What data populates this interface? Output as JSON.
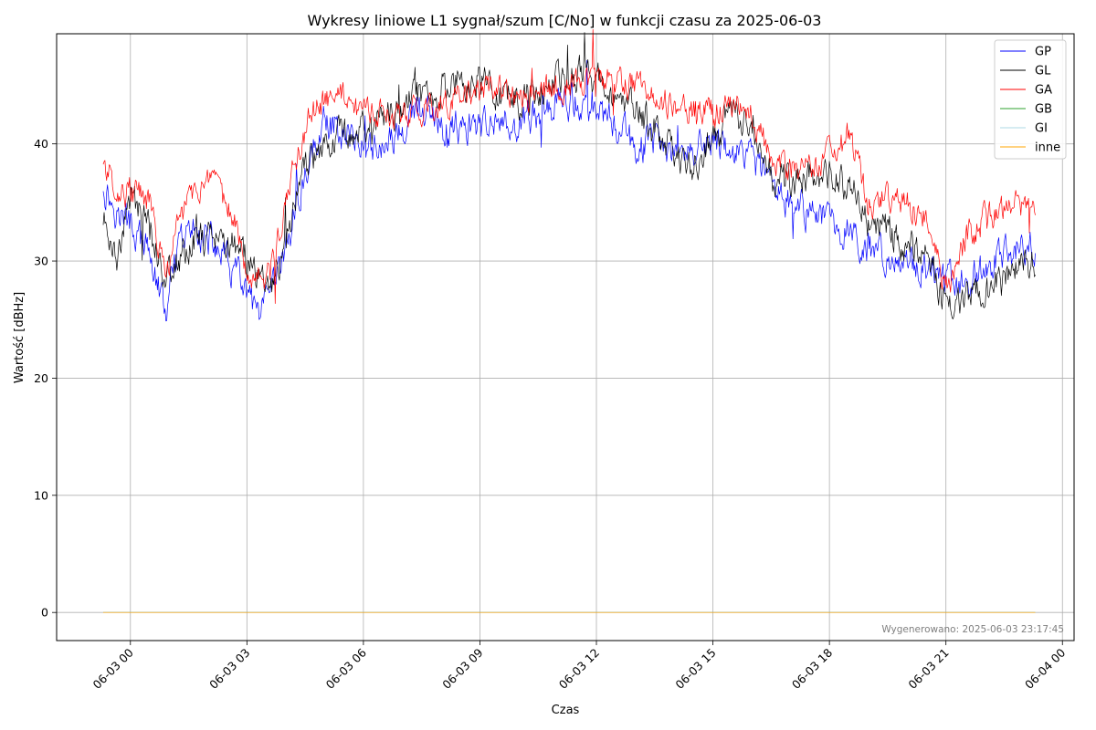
{
  "chart_data": {
    "type": "line",
    "title": "Wykresy liniowe L1 sygnał/szum [C/No] w funkcji czasu za 2025-06-03",
    "xlabel": "Czas",
    "ylabel": "Wartość [dBHz]",
    "x_unit": "hours since 2025-06-03 00:00",
    "xlim": [
      -1.9,
      24.3
    ],
    "ylim": [
      -2.4,
      49.4
    ],
    "yticks": [
      0,
      10,
      20,
      30,
      40
    ],
    "xticks": [
      {
        "x": 0,
        "label": "06-03 00"
      },
      {
        "x": 3,
        "label": "06-03 03"
      },
      {
        "x": 6,
        "label": "06-03 06"
      },
      {
        "x": 9,
        "label": "06-03 09"
      },
      {
        "x": 12,
        "label": "06-03 12"
      },
      {
        "x": 15,
        "label": "06-03 15"
      },
      {
        "x": 18,
        "label": "06-03 18"
      },
      {
        "x": 21,
        "label": "06-03 21"
      },
      {
        "x": 24,
        "label": "06-04 00"
      }
    ],
    "grid": true,
    "legend_position": "top-right",
    "x": [
      -0.7,
      -0.3,
      0.0,
      0.5,
      0.9,
      1.3,
      1.7,
      2.2,
      2.7,
      3.0,
      3.3,
      3.6,
      4.0,
      4.3,
      4.7,
      5.0,
      5.5,
      6.0,
      6.5,
      7.0,
      7.5,
      8.0,
      8.5,
      9.0,
      9.5,
      10.0,
      10.5,
      11.0,
      11.5,
      12.0,
      12.5,
      13.0,
      13.5,
      14.0,
      14.5,
      15.0,
      15.5,
      16.0,
      16.5,
      17.0,
      17.5,
      18.0,
      18.5,
      19.0,
      19.5,
      20.0,
      20.5,
      21.0,
      21.5,
      22.0,
      22.5,
      23.0,
      23.3
    ],
    "series": [
      {
        "name": "GP",
        "color": "#0000ff",
        "values": [
          36.5,
          34.0,
          33.0,
          30.5,
          25.5,
          31.5,
          33.0,
          31.0,
          29.0,
          27.0,
          25.0,
          26.5,
          31.0,
          35.0,
          39.5,
          42.0,
          41.0,
          40.5,
          39.5,
          41.0,
          43.0,
          41.0,
          41.5,
          41.0,
          41.5,
          42.0,
          42.5,
          43.5,
          43.5,
          42.5,
          41.5,
          40.0,
          40.0,
          39.0,
          39.5,
          40.0,
          39.5,
          38.5,
          36.5,
          35.0,
          34.0,
          33.5,
          32.5,
          31.0,
          30.5,
          29.5,
          29.5,
          28.5,
          28.0,
          29.0,
          30.5,
          31.5,
          30.5
        ]
      },
      {
        "name": "GL",
        "color": "#000000",
        "values": [
          33.5,
          30.5,
          35.5,
          33.0,
          28.5,
          30.5,
          32.0,
          32.0,
          31.5,
          30.0,
          28.5,
          28.0,
          31.5,
          36.0,
          39.0,
          40.5,
          41.0,
          41.5,
          42.0,
          43.5,
          44.5,
          45.0,
          45.5,
          45.5,
          44.0,
          43.5,
          44.5,
          45.0,
          46.0,
          45.5,
          44.5,
          43.0,
          41.0,
          39.0,
          38.0,
          41.0,
          42.5,
          42.5,
          37.0,
          36.5,
          37.5,
          37.5,
          36.5,
          33.5,
          32.5,
          31.5,
          31.0,
          26.0,
          27.0,
          27.5,
          28.0,
          29.5,
          30.0
        ]
      },
      {
        "name": "GA",
        "color": "#ff0000",
        "values": [
          38.5,
          36.0,
          36.0,
          35.0,
          28.5,
          34.0,
          36.5,
          36.0,
          33.5,
          29.5,
          28.5,
          29.0,
          35.0,
          39.0,
          43.0,
          43.5,
          44.0,
          42.5,
          42.5,
          42.5,
          43.0,
          43.5,
          44.0,
          44.5,
          44.5,
          44.0,
          44.5,
          45.0,
          45.0,
          45.5,
          45.5,
          45.0,
          44.0,
          43.5,
          43.0,
          42.5,
          43.5,
          42.5,
          39.0,
          38.0,
          38.0,
          39.0,
          41.0,
          35.0,
          35.5,
          35.0,
          33.5,
          27.5,
          32.0,
          33.5,
          34.5,
          35.0,
          35.0
        ]
      },
      {
        "name": "GB",
        "color": "#2ca02c",
        "values": [
          0,
          0,
          0,
          0,
          0,
          0,
          0,
          0,
          0,
          0,
          0,
          0,
          0,
          0,
          0,
          0,
          0,
          0,
          0,
          0,
          0,
          0,
          0,
          0,
          0,
          0,
          0,
          0,
          0,
          0,
          0,
          0,
          0,
          0,
          0,
          0,
          0,
          0,
          0,
          0,
          0,
          0,
          0,
          0,
          0,
          0,
          0,
          0,
          0,
          0,
          0,
          0,
          0
        ]
      },
      {
        "name": "GI",
        "color": "#add8e6",
        "values": [
          0,
          0,
          0,
          0,
          0,
          0,
          0,
          0,
          0,
          0,
          0,
          0,
          0,
          0,
          0,
          0,
          0,
          0,
          0,
          0,
          0,
          0,
          0,
          0,
          0,
          0,
          0,
          0,
          0,
          0,
          0,
          0,
          0,
          0,
          0,
          0,
          0,
          0,
          0,
          0,
          0,
          0,
          0,
          0,
          0,
          0,
          0,
          0,
          0,
          0,
          0,
          0,
          0
        ]
      },
      {
        "name": "inne",
        "color": "#ffa500",
        "values": [
          0,
          0,
          0,
          0,
          0,
          0,
          0,
          0,
          0,
          0,
          0,
          0,
          0,
          0,
          0,
          0,
          0,
          0,
          0,
          0,
          0,
          0,
          0,
          0,
          0,
          0,
          0,
          0,
          0,
          0,
          0,
          0,
          0,
          0,
          0,
          0,
          0,
          0,
          0,
          0,
          0,
          0,
          0,
          0,
          0,
          0,
          0,
          0,
          0,
          0,
          0,
          0,
          0
        ]
      }
    ],
    "footer": "Wygenerowano: 2025-06-03 23:17:45"
  }
}
